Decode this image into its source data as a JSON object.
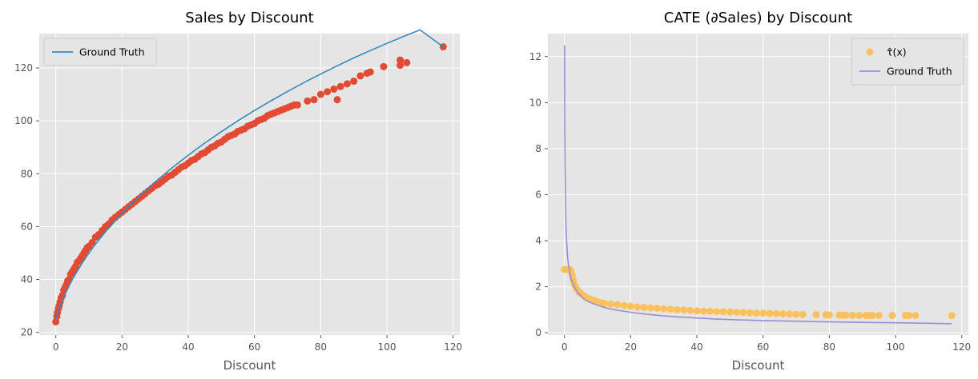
{
  "chart_data": [
    {
      "type": "scatter",
      "title": "Sales by Discount",
      "xlabel": "Discount",
      "ylabel": "",
      "xlim": [
        -5,
        122
      ],
      "ylim": [
        19,
        133
      ],
      "xticks": [
        0,
        20,
        40,
        60,
        80,
        100,
        120
      ],
      "yticks": [
        20,
        40,
        60,
        80,
        100,
        120
      ],
      "grid": true,
      "legend_position": "top-left",
      "series": [
        {
          "name": "Ground Truth",
          "kind": "line",
          "color": "#348ABD",
          "x": [
            0,
            1,
            2,
            3,
            4,
            5,
            6,
            8,
            10,
            12,
            15,
            20,
            25,
            30,
            35,
            40,
            45,
            50,
            55,
            60,
            65,
            70,
            75,
            80,
            85,
            90,
            95,
            100,
            105,
            110,
            117
          ],
          "y": [
            25.0,
            28.8,
            32.1,
            35.0,
            37.6,
            40.0,
            42.2,
            46.3,
            50.0,
            53.4,
            58.1,
            65.0,
            71.2,
            76.9,
            82.1,
            87.0,
            91.6,
            95.9,
            100.0,
            103.9,
            107.6,
            111.1,
            114.5,
            117.7,
            120.8,
            123.8,
            126.6,
            129.3,
            131.9,
            134.4,
            128.0
          ]
        },
        {
          "name": "",
          "kind": "scatter",
          "color": "#E24A33",
          "x": [
            0,
            0.3,
            0.5,
            0.8,
            1,
            1.3,
            1.6,
            2,
            2.4,
            2.8,
            3.2,
            3.6,
            4,
            4.5,
            5,
            5.5,
            6,
            6.5,
            7,
            7.5,
            8,
            8.5,
            9,
            9.5,
            10,
            11,
            12,
            13,
            14,
            15,
            16,
            17,
            18,
            19,
            20,
            21,
            22,
            23,
            24,
            25,
            26,
            27,
            28,
            29,
            30,
            31,
            32,
            33,
            34,
            35,
            36,
            37,
            38,
            39,
            40,
            41,
            42,
            43,
            44,
            45,
            46,
            47,
            48,
            49,
            50,
            51,
            52,
            53,
            54,
            55,
            56,
            57,
            58,
            59,
            60,
            61,
            62,
            63,
            64,
            65,
            66,
            67,
            68,
            69,
            70,
            71,
            72,
            73,
            76,
            78,
            80,
            82,
            84,
            85,
            86,
            88,
            90,
            92,
            94,
            95,
            99,
            104,
            104,
            106,
            117
          ],
          "y": [
            24,
            26,
            27.5,
            29,
            30,
            31.5,
            33,
            34,
            36,
            37,
            38,
            39.5,
            40,
            42,
            43,
            44,
            45,
            46.5,
            47,
            48,
            49,
            50,
            51,
            52,
            52.5,
            54,
            56,
            57,
            58.5,
            60,
            61,
            62.5,
            63.5,
            64.5,
            65.5,
            66.5,
            67.5,
            68.5,
            69.5,
            70.5,
            71.5,
            72.5,
            73.5,
            74.5,
            75.5,
            76,
            77,
            78,
            79,
            79.5,
            80.5,
            81.5,
            82.5,
            83,
            84,
            85,
            85.5,
            86.5,
            87.5,
            88,
            89,
            90,
            90.5,
            91.5,
            92,
            93,
            94,
            94.5,
            95,
            96,
            96.5,
            97,
            98,
            98.5,
            99,
            100,
            100.5,
            101,
            102,
            102.5,
            103,
            103.5,
            104,
            104.5,
            105,
            105.5,
            106,
            106,
            107.5,
            108,
            110,
            111,
            112,
            108,
            113,
            114,
            115,
            117,
            118,
            118.5,
            120.5,
            121,
            123,
            122,
            128
          ]
        }
      ]
    },
    {
      "type": "scatter",
      "title": "CATE (∂Sales) by Discount",
      "xlabel": "Discount",
      "ylabel": "",
      "xlim": [
        -5,
        122
      ],
      "ylim": [
        -0.1,
        13
      ],
      "xticks": [
        0,
        20,
        40,
        60,
        80,
        100,
        120
      ],
      "yticks": [
        0,
        2,
        4,
        6,
        8,
        10,
        12
      ],
      "grid": true,
      "legend_position": "top-right",
      "series": [
        {
          "name": "τ̂(x)",
          "kind": "scatter",
          "color": "#FBC15E",
          "x": [
            0,
            0.5,
            1,
            1.5,
            2,
            2.3,
            2.6,
            3,
            3.5,
            4,
            4.5,
            5,
            6,
            7,
            8,
            9,
            10,
            11,
            12,
            14,
            16,
            18,
            20,
            22,
            24,
            26,
            28,
            30,
            32,
            34,
            36,
            38,
            40,
            42,
            44,
            46,
            48,
            50,
            52,
            54,
            56,
            58,
            60,
            62,
            64,
            66,
            68,
            70,
            72,
            76,
            79,
            80,
            83,
            84,
            85,
            87,
            89,
            91,
            92,
            93,
            95,
            99,
            103,
            104,
            106,
            117
          ],
          "y": [
            2.75,
            2.75,
            2.75,
            2.75,
            2.7,
            2.5,
            2.3,
            2.1,
            1.95,
            1.85,
            1.75,
            1.7,
            1.6,
            1.5,
            1.45,
            1.4,
            1.35,
            1.3,
            1.28,
            1.25,
            1.22,
            1.18,
            1.15,
            1.12,
            1.1,
            1.08,
            1.06,
            1.04,
            1.02,
            1.0,
            0.99,
            0.97,
            0.95,
            0.94,
            0.93,
            0.92,
            0.91,
            0.9,
            0.89,
            0.88,
            0.87,
            0.86,
            0.85,
            0.84,
            0.83,
            0.82,
            0.81,
            0.8,
            0.79,
            0.78,
            0.78,
            0.77,
            0.77,
            0.76,
            0.76,
            0.76,
            0.75,
            0.75,
            0.75,
            0.75,
            0.75,
            0.75,
            0.75,
            0.75,
            0.75,
            0.75
          ]
        },
        {
          "name": "Ground Truth",
          "kind": "line",
          "color": "#988ED5",
          "x": [
            0.04,
            0.08,
            0.15,
            0.3,
            0.5,
            0.8,
            1,
            1.5,
            2,
            3,
            4,
            5,
            6,
            8,
            10,
            12,
            15,
            20,
            25,
            30,
            35,
            40,
            45,
            50,
            55,
            60,
            70,
            80,
            90,
            100,
            110,
            117
          ],
          "y": [
            12.5,
            10.0,
            8.0,
            6.0,
            4.5,
            3.6,
            3.2,
            2.7,
            2.35,
            2.0,
            1.75,
            1.6,
            1.45,
            1.3,
            1.2,
            1.1,
            1.0,
            0.89,
            0.8,
            0.73,
            0.68,
            0.64,
            0.6,
            0.57,
            0.55,
            0.53,
            0.5,
            0.47,
            0.45,
            0.43,
            0.41,
            0.39
          ]
        }
      ]
    }
  ]
}
